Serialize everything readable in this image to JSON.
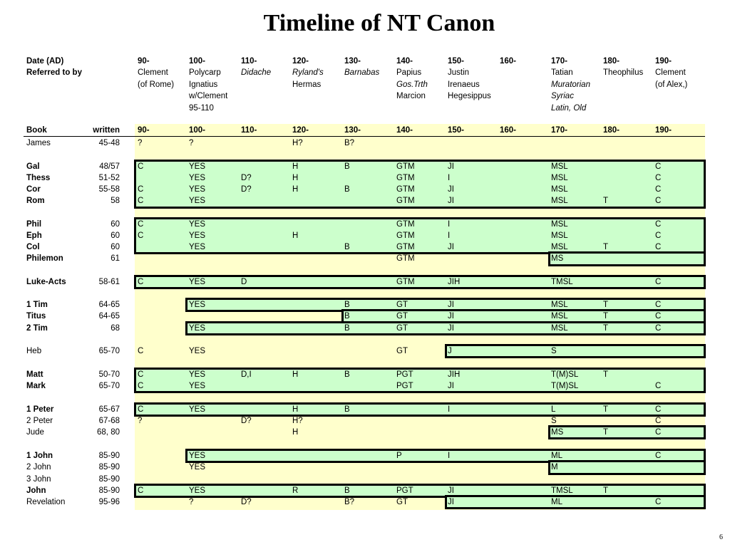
{
  "title": "Timeline of NT Canon",
  "page_number": "6",
  "header": {
    "date_label": "Date (AD)",
    "referred_label": "Referred to by",
    "dates": [
      "90-",
      "100-",
      "110-",
      "120-",
      "130-",
      "140-",
      "150-",
      "160-",
      "170-",
      "180-",
      "190-"
    ],
    "refs": [
      [
        "Clement",
        "(of Rome)"
      ],
      [
        "Polycarp",
        "Ignatius",
        "w/Clement",
        "95-110"
      ],
      [
        "Didache"
      ],
      [
        "Ryland's",
        "Hermas"
      ],
      [
        "Barnabas"
      ],
      [
        "Papius",
        "Gos.Trth",
        "Marcion"
      ],
      [
        "Justin",
        "Irenaeus",
        "Hegesippus"
      ],
      [],
      [
        "Tatian",
        "Muratorian",
        "Syriac",
        "Latin, Old"
      ],
      [
        "Theophilus"
      ],
      [
        "Clement",
        "(of Alex,)"
      ]
    ]
  },
  "table": {
    "book_label": "Book",
    "written_label": "written",
    "columns": [
      "90-",
      "100-",
      "110-",
      "120-",
      "130-",
      "140-",
      "150-",
      "160-",
      "170-",
      "180-",
      "190-"
    ],
    "rows": [
      {
        "book": "James",
        "written": "45-48",
        "bold": false,
        "cells": [
          "?",
          "?",
          "",
          "H?",
          "B?",
          "",
          "",
          "",
          "",
          "",
          ""
        ]
      },
      {
        "book": "Gal",
        "written": "48/57",
        "bold": true,
        "cells": [
          "C",
          "YES",
          "",
          "H",
          "B",
          "GTM",
          "JI",
          "",
          "MSL",
          "",
          "C"
        ]
      },
      {
        "book": "Thess",
        "written": "51-52",
        "bold": true,
        "cells": [
          "",
          "YES",
          "D?",
          "H",
          "",
          "GTM",
          "I",
          "",
          "MSL",
          "",
          "C"
        ]
      },
      {
        "book": "Cor",
        "written": "55-58",
        "bold": true,
        "cells": [
          "C",
          "YES",
          "D?",
          "H",
          "B",
          "GTM",
          "JI",
          "",
          "MSL",
          "",
          "C"
        ]
      },
      {
        "book": "Rom",
        "written": "58",
        "bold": true,
        "cells": [
          "C",
          "YES",
          "",
          "",
          "",
          "GTM",
          "JI",
          "",
          "MSL",
          "T",
          "C"
        ]
      },
      {
        "book": "Phil",
        "written": "60",
        "bold": true,
        "cells": [
          "C",
          "YES",
          "",
          "",
          "",
          "GTM",
          "I",
          "",
          "MSL",
          "",
          "C"
        ]
      },
      {
        "book": "Eph",
        "written": "60",
        "bold": true,
        "cells": [
          "C",
          "YES",
          "",
          "H",
          "",
          "GTM",
          "I",
          "",
          "MSL",
          "",
          "C"
        ]
      },
      {
        "book": "Col",
        "written": "60",
        "bold": true,
        "cells": [
          "",
          "YES",
          "",
          "",
          "B",
          "GTM",
          "JI",
          "",
          "MSL",
          "T",
          "C"
        ]
      },
      {
        "book": "Philemon",
        "written": "61",
        "bold": true,
        "cells": [
          "",
          "",
          "",
          "",
          "",
          "GTM",
          "",
          "",
          "MS",
          "",
          ""
        ]
      },
      {
        "book": "Luke-Acts",
        "written": "58-61",
        "bold": true,
        "cells": [
          "C",
          "YES",
          "D",
          "",
          "",
          "GTM",
          "JIH",
          "",
          "TMSL",
          "",
          "C"
        ]
      },
      {
        "book": "1 Tim",
        "written": "64-65",
        "bold": true,
        "cells": [
          "",
          "YES",
          "",
          "",
          "B",
          "GT",
          "JI",
          "",
          "MSL",
          "T",
          "C"
        ]
      },
      {
        "book": "Titus",
        "written": "64-65",
        "bold": true,
        "cells": [
          "",
          "",
          "",
          "",
          "B",
          "GT",
          "JI",
          "",
          "MSL",
          "T",
          "C"
        ]
      },
      {
        "book": "2 Tim",
        "written": "68",
        "bold": true,
        "cells": [
          "",
          "YES",
          "",
          "",
          "B",
          "GT",
          "JI",
          "",
          "MSL",
          "T",
          "C"
        ]
      },
      {
        "book": "Heb",
        "written": "65-70",
        "bold": false,
        "cells": [
          "C",
          "YES",
          "",
          "",
          "",
          "GT",
          "J",
          "",
          "S",
          "",
          ""
        ]
      },
      {
        "book": "Matt",
        "written": "50-70",
        "bold": true,
        "cells": [
          "C",
          "YES",
          "D,I",
          "H",
          "B",
          "PGT",
          "JIH",
          "",
          "T(M)SL",
          "T",
          ""
        ]
      },
      {
        "book": "Mark",
        "written": "65-70",
        "bold": true,
        "cells": [
          "C",
          "YES",
          "",
          "",
          "",
          "PGT",
          "JI",
          "",
          "T(M)SL",
          "",
          "C"
        ]
      },
      {
        "book": "1 Peter",
        "written": "65-67",
        "bold": true,
        "cells": [
          "C",
          "YES",
          "",
          "H",
          "B",
          "",
          "I",
          "",
          "L",
          "T",
          "C"
        ]
      },
      {
        "book": "2 Peter",
        "written": "67-68",
        "bold": false,
        "cells": [
          "?",
          "",
          "D?",
          "H?",
          "",
          "",
          "",
          "",
          "S",
          "",
          "C"
        ]
      },
      {
        "book": "Jude",
        "written": "68, 80",
        "bold": false,
        "cells": [
          "",
          "",
          "",
          "H",
          "",
          "",
          "",
          "",
          "MS",
          "T",
          "C"
        ]
      },
      {
        "book": "1 John",
        "written": "85-90",
        "bold": true,
        "cells": [
          "",
          "YES",
          "",
          "",
          "",
          "P",
          "I",
          "",
          "ML",
          "",
          "C"
        ]
      },
      {
        "book": "2 John",
        "written": "85-90",
        "bold": false,
        "cells": [
          "",
          "YES",
          "",
          "",
          "",
          "",
          "",
          "",
          "M",
          "",
          ""
        ]
      },
      {
        "book": "3 John",
        "written": "85-90",
        "bold": false,
        "cells": [
          "",
          "",
          "",
          "",
          "",
          "",
          "",
          "",
          "",
          "",
          ""
        ]
      },
      {
        "book": "John",
        "written": "85-90",
        "bold": true,
        "cells": [
          "C",
          "YES",
          "",
          "R",
          "B",
          "PGT",
          "JI",
          "",
          "TMSL",
          "T",
          ""
        ]
      },
      {
        "book": "Revelation",
        "written": "95-96",
        "bold": false,
        "cells": [
          "",
          "?",
          "D?",
          "",
          "B?",
          "GT",
          "JI",
          "",
          "ML",
          "",
          "C"
        ]
      }
    ]
  },
  "colors": {
    "band": "#ffffcc",
    "highlight": "#ccffcc",
    "border": "#000000"
  }
}
